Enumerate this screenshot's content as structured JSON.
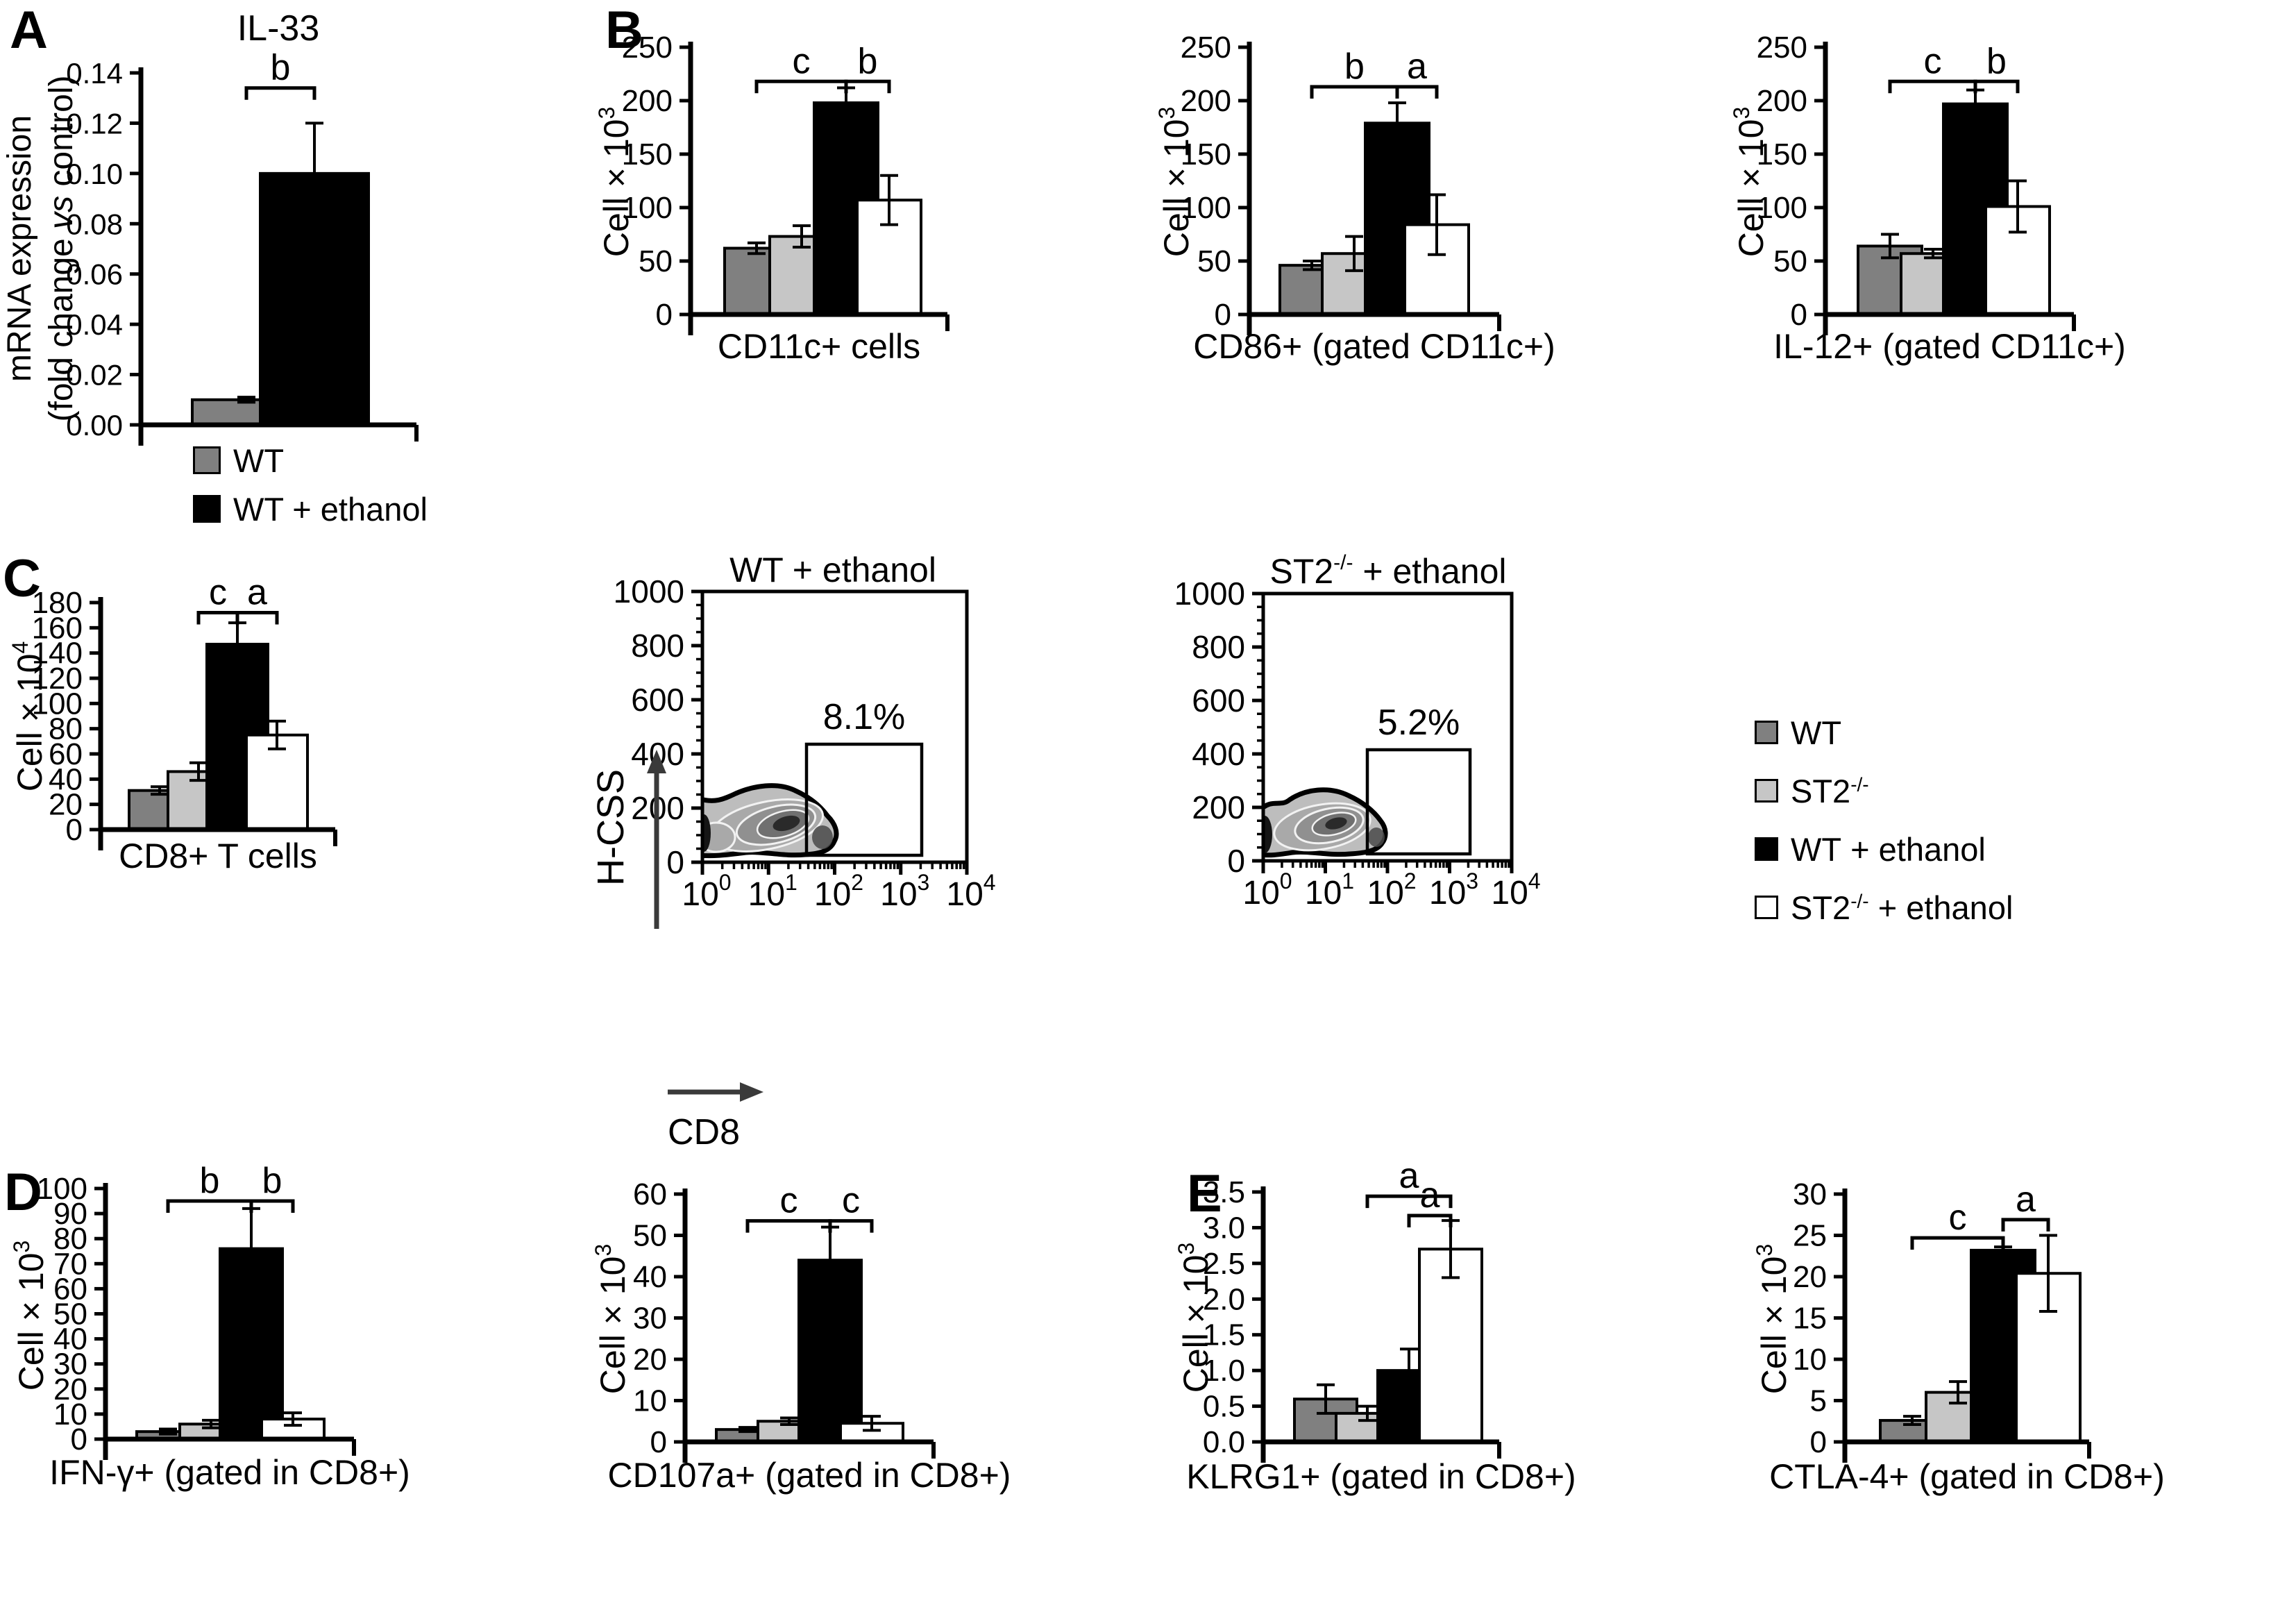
{
  "panel_labels": {
    "A": "A",
    "B": "B",
    "C": "C",
    "D": "D",
    "E": "E"
  },
  "palette": {
    "dark_gray": "#808080",
    "light_gray": "#C6C6C6",
    "black": "#000000",
    "white": "#FFFFFF"
  },
  "legend_a": {
    "items": [
      {
        "label": "WT",
        "color": "#808080"
      },
      {
        "label": "WT + ethanol",
        "color": "#000000"
      }
    ]
  },
  "legend_main": {
    "items": [
      {
        "base": "WT",
        "sup": "",
        "rest": "",
        "color": "#808080"
      },
      {
        "base": "ST2",
        "sup": "-/-",
        "rest": "",
        "color": "#C6C6C6"
      },
      {
        "base": "WT",
        "sup": "",
        "rest": " + ethanol",
        "color": "#000000"
      },
      {
        "base": "ST2",
        "sup": "-/-",
        "rest": " + ethanol",
        "color": "#FFFFFF"
      }
    ]
  },
  "chart_data": [
    {
      "id": "il33",
      "type": "bar",
      "title": "IL-33",
      "xlabel": null,
      "ylabel_lines": [
        [
          {
            "t": "mRNA expression"
          }
        ],
        [
          {
            "t": "(fold change "
          },
          {
            "t": "vs",
            "i": true
          },
          {
            "t": " control)"
          }
        ]
      ],
      "ylim": [
        0,
        0.14
      ],
      "ytick_step": 0.02,
      "ytick_decimals": 2,
      "categories": [
        "WT",
        "WT + ethanol"
      ],
      "values": [
        0.01,
        0.1
      ],
      "errors": [
        0.001,
        0.02
      ],
      "bar_colors": [
        "#808080",
        "#000000"
      ],
      "sig_brackets": [
        {
          "label": "b",
          "from": 0,
          "to": 1,
          "y": 0.134
        }
      ]
    },
    {
      "id": "cd11c",
      "type": "bar",
      "title": null,
      "xlabel": "CD11c+ cells",
      "ylabel": {
        "base": "Cell × 10",
        "exp": "3"
      },
      "ylim": [
        0,
        250
      ],
      "ytick_step": 50,
      "ytick_decimals": 0,
      "categories": [
        "WT",
        "ST2-/-",
        "WT + ethanol",
        "ST2-/- + ethanol"
      ],
      "values": [
        62,
        73,
        198,
        107
      ],
      "errors": [
        5,
        10,
        14,
        23
      ],
      "bar_colors": [
        "#808080",
        "#C6C6C6",
        "#000000",
        "#FFFFFF"
      ],
      "sig_brackets": [
        {
          "label": "c",
          "from": 0,
          "to": 2,
          "y": 218
        },
        {
          "label": "b",
          "from": 2,
          "to": 3,
          "y": 218
        }
      ]
    },
    {
      "id": "cd86",
      "type": "bar",
      "title": null,
      "xlabel": "CD86+ (gated CD11c+)",
      "ylabel": {
        "base": "Cell × 10",
        "exp": "3"
      },
      "ylim": [
        0,
        250
      ],
      "ytick_step": 50,
      "ytick_decimals": 0,
      "categories": [
        "WT",
        "ST2-/-",
        "WT + ethanol",
        "ST2-/- + ethanol"
      ],
      "values": [
        46,
        57,
        179,
        84
      ],
      "errors": [
        4,
        16,
        19,
        28
      ],
      "bar_colors": [
        "#808080",
        "#C6C6C6",
        "#000000",
        "#FFFFFF"
      ],
      "sig_brackets": [
        {
          "label": "b",
          "from": 0,
          "to": 2,
          "y": 213
        },
        {
          "label": "a",
          "from": 2,
          "to": 3,
          "y": 213
        }
      ]
    },
    {
      "id": "il12",
      "type": "bar",
      "title": null,
      "xlabel": "IL-12+ (gated CD11c+)",
      "ylabel": {
        "base": "Cell × 10",
        "exp": "3"
      },
      "ylim": [
        0,
        250
      ],
      "ytick_step": 50,
      "ytick_decimals": 0,
      "categories": [
        "WT",
        "ST2-/-",
        "WT + ethanol",
        "ST2-/- + ethanol"
      ],
      "values": [
        64,
        57,
        197,
        101
      ],
      "errors": [
        11,
        4,
        13,
        24
      ],
      "bar_colors": [
        "#808080",
        "#C6C6C6",
        "#000000",
        "#FFFFFF"
      ],
      "sig_brackets": [
        {
          "label": "c",
          "from": 0,
          "to": 2,
          "y": 218
        },
        {
          "label": "b",
          "from": 2,
          "to": 3,
          "y": 218
        }
      ]
    },
    {
      "id": "cd8t",
      "type": "bar",
      "title": null,
      "xlabel": "CD8+ T cells",
      "ylabel": {
        "base": "Cell × 10",
        "exp": "4"
      },
      "ylim": [
        0,
        180
      ],
      "ytick_step": 20,
      "ytick_decimals": 0,
      "categories": [
        "WT",
        "ST2-/-",
        "WT + ethanol",
        "ST2-/- + ethanol"
      ],
      "values": [
        31,
        46,
        147,
        75
      ],
      "errors": [
        3,
        7,
        17,
        11
      ],
      "bar_colors": [
        "#808080",
        "#C6C6C6",
        "#000000",
        "#FFFFFF"
      ],
      "sig_brackets": [
        {
          "label": "c",
          "from": 1,
          "to": 2,
          "y": 172
        },
        {
          "label": "a",
          "from": 2,
          "to": 3,
          "y": 172
        }
      ]
    },
    {
      "id": "ifng",
      "type": "bar",
      "title": null,
      "xlabel": "IFN-γ+ (gated in CD8+)",
      "ylabel": {
        "base": "Cell × 10",
        "exp": "3"
      },
      "ylim": [
        0,
        100
      ],
      "ytick_step": 10,
      "ytick_decimals": 0,
      "categories": [
        "WT",
        "ST2-/-",
        "WT + ethanol",
        "ST2-/- + ethanol"
      ],
      "values": [
        3,
        6,
        76,
        8
      ],
      "errors": [
        1,
        1.5,
        16,
        2.5
      ],
      "bar_colors": [
        "#808080",
        "#C6C6C6",
        "#000000",
        "#FFFFFF"
      ],
      "sig_brackets": [
        {
          "label": "b",
          "from": 0,
          "to": 2,
          "y": 95
        },
        {
          "label": "b",
          "from": 2,
          "to": 3,
          "y": 95
        }
      ]
    },
    {
      "id": "cd107a",
      "type": "bar",
      "title": null,
      "xlabel": "CD107a+ (gated in CD8+)",
      "ylabel": {
        "base": "Cell × 10",
        "exp": "3"
      },
      "ylim": [
        0,
        60
      ],
      "ytick_step": 10,
      "ytick_decimals": 0,
      "categories": [
        "WT",
        "ST2-/-",
        "WT + ethanol",
        "ST2-/- + ethanol"
      ],
      "values": [
        3,
        5,
        44,
        4.5
      ],
      "errors": [
        0.5,
        0.8,
        8,
        1.7
      ],
      "bar_colors": [
        "#808080",
        "#C6C6C6",
        "#000000",
        "#FFFFFF"
      ],
      "sig_brackets": [
        {
          "label": "c",
          "from": 0,
          "to": 2,
          "y": 53.5
        },
        {
          "label": "c",
          "from": 2,
          "to": 3,
          "y": 53.5
        }
      ]
    },
    {
      "id": "klrg1",
      "type": "bar",
      "title": null,
      "xlabel": "KLRG1+ (gated in CD8+)",
      "ylabel": {
        "base": "Cell × 10",
        "exp": "3"
      },
      "ylim": [
        0,
        3.5
      ],
      "ytick_step": 0.5,
      "ytick_decimals": 1,
      "categories": [
        "WT",
        "ST2-/-",
        "WT + ethanol",
        "ST2-/- + ethanol"
      ],
      "values": [
        0.6,
        0.4,
        1.0,
        2.7
      ],
      "errors": [
        0.2,
        0.1,
        0.3,
        0.4
      ],
      "bar_colors": [
        "#808080",
        "#C6C6C6",
        "#000000",
        "#FFFFFF"
      ],
      "sig_brackets": [
        {
          "label": "a",
          "from": 1,
          "to": 3,
          "y": 3.44
        },
        {
          "label": "a",
          "from": 2,
          "to": 3,
          "y": 3.17
        }
      ]
    },
    {
      "id": "ctla4",
      "type": "bar",
      "title": null,
      "xlabel": "CTLA-4+ (gated in CD8+)",
      "ylabel": {
        "base": "Cell × 10",
        "exp": "3"
      },
      "ylim": [
        0,
        30
      ],
      "ytick_step": 5,
      "ytick_decimals": 0,
      "categories": [
        "WT",
        "ST2-/-",
        "WT + ethanol",
        "ST2-/- + ethanol"
      ],
      "values": [
        2.6,
        6.0,
        23.2,
        20.4
      ],
      "errors": [
        0.5,
        1.3,
        0.4,
        4.6
      ],
      "bar_colors": [
        "#808080",
        "#C6C6C6",
        "#000000",
        "#FFFFFF"
      ],
      "sig_brackets": [
        {
          "label": "c",
          "from": 0,
          "to": 2,
          "y": 24.7
        },
        {
          "label": "a",
          "from": 2,
          "to": 3,
          "y": 26.9
        }
      ]
    },
    {
      "id": "flow_wt",
      "type": "flow_contour",
      "title": {
        "base": "WT",
        "sup": "",
        "rest": " + ethanol"
      },
      "gate_label": "8.1%",
      "ylabel": "SSC-H",
      "xlabel": "CD8",
      "ylim": [
        0,
        1000
      ],
      "yticks": [
        0,
        200,
        400,
        600,
        800,
        1000
      ],
      "x_ticks": [
        {
          "base": "10",
          "exp": "0"
        },
        {
          "base": "10",
          "exp": "1"
        },
        {
          "base": "10",
          "exp": "2"
        },
        {
          "base": "10",
          "exp": "3"
        },
        {
          "base": "10",
          "exp": "4"
        }
      ]
    },
    {
      "id": "flow_st2",
      "type": "flow_contour",
      "title": {
        "base": "ST2",
        "sup": "-/-",
        "rest": " + ethanol"
      },
      "gate_label": "5.2%",
      "ylabel": null,
      "xlabel": null,
      "ylim": [
        0,
        1000
      ],
      "yticks": [
        0,
        200,
        400,
        600,
        800,
        1000
      ],
      "x_ticks": [
        {
          "base": "10",
          "exp": "0"
        },
        {
          "base": "10",
          "exp": "1"
        },
        {
          "base": "10",
          "exp": "2"
        },
        {
          "base": "10",
          "exp": "3"
        },
        {
          "base": "10",
          "exp": "4"
        }
      ]
    }
  ]
}
